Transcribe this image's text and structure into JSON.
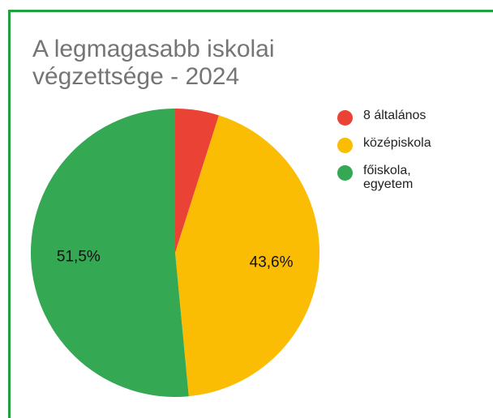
{
  "chart_data": {
    "type": "pie",
    "title": "A legmagasabb iskolai végzettsége - 2024",
    "categories": [
      "8 általános",
      "középiskola",
      "főiskola, egyetem"
    ],
    "values": [
      4.9,
      43.6,
      51.5
    ],
    "value_labels": [
      null,
      "43,6%",
      "51,5%"
    ],
    "colors": [
      "#ea4335",
      "#fbbc04",
      "#34a853"
    ]
  }
}
